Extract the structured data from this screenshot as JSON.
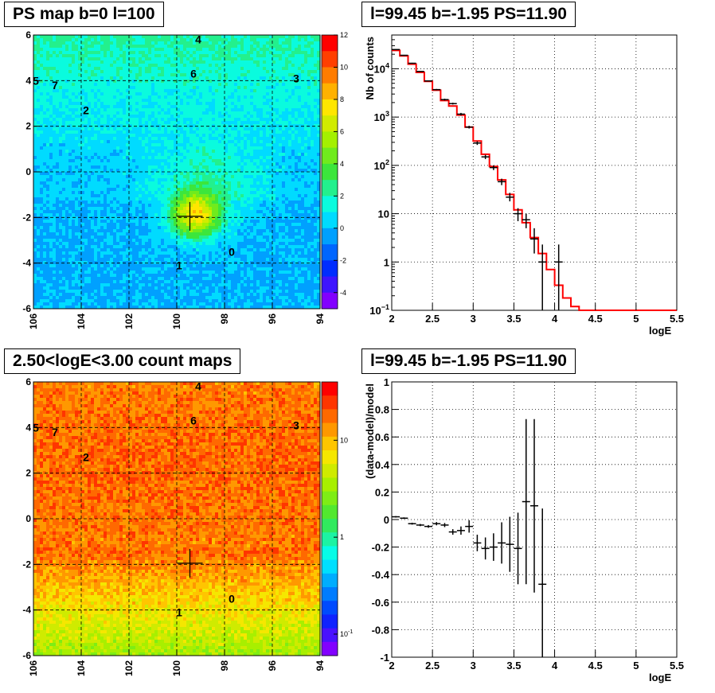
{
  "panels": {
    "ps_map_title": "PS map b=0 l=100",
    "spectrum_title": "l=99.45 b=-1.95 PS=11.90",
    "count_map_title": "2.50<logE<3.00 count maps",
    "residual_title": "l=99.45 b=-1.95 PS=11.90"
  },
  "colors": {
    "data": "#000000",
    "model": "#ff0000",
    "grid": "#000000"
  },
  "chart_data": [
    {
      "type": "heatmap",
      "title": "PS map b=0 l=100",
      "x_ticks": [
        "106",
        "104",
        "102",
        "100",
        "98",
        "96",
        "94"
      ],
      "y_ticks": [
        "6",
        "4",
        "2",
        "0",
        "-2",
        "-4",
        "-6"
      ],
      "xlim": [
        106,
        94
      ],
      "ylim": [
        -6,
        6
      ],
      "colorbar_ticks": [
        "12",
        "10",
        "8",
        "6",
        "4",
        "2",
        "0",
        "-2",
        "-4"
      ],
      "colorbar_range": [
        -5,
        12
      ],
      "grid": true,
      "cross": {
        "l": 99.45,
        "b": -1.95
      },
      "sources": [
        {
          "label": "4",
          "l": 99.1,
          "b": 5.8
        },
        {
          "label": "5",
          "l": 105.9,
          "b": 4.0
        },
        {
          "label": "7",
          "l": 105.1,
          "b": 3.8
        },
        {
          "label": "6",
          "l": 99.3,
          "b": 4.3
        },
        {
          "label": "3",
          "l": 95.0,
          "b": 4.1
        },
        {
          "label": "2",
          "l": 103.8,
          "b": 2.7
        },
        {
          "label": "0",
          "l": 97.7,
          "b": -3.5
        },
        {
          "label": "1",
          "l": 99.9,
          "b": -4.1
        }
      ]
    },
    {
      "type": "line",
      "title": "l=99.45 b=-1.95 PS=11.90",
      "xlabel": "logE",
      "ylabel": "Nb of counts",
      "xlim": [
        2,
        5.5
      ],
      "ylim": [
        0.1,
        50000
      ],
      "ylog": true,
      "x_ticks": [
        "2",
        "2.5",
        "3",
        "3.5",
        "4",
        "4.5",
        "5",
        "5.5"
      ],
      "y_ticks": [
        {
          "v": 10000,
          "base": "10",
          "exp": "4"
        },
        {
          "v": 1000,
          "base": "10",
          "exp": "3"
        },
        {
          "v": 100,
          "base": "10",
          "exp": "2"
        },
        {
          "v": 10,
          "base": "10",
          "exp": ""
        },
        {
          "v": 1,
          "base": "1",
          "exp": ""
        },
        {
          "v": 0.1,
          "base": "10",
          "exp": "−1"
        }
      ],
      "grid": true,
      "series": [
        {
          "kind": "data",
          "points": [
            {
              "x": 2.05,
              "y": 25000,
              "lo": 24500,
              "hi": 25500
            },
            {
              "x": 2.15,
              "y": 19000,
              "lo": 18600,
              "hi": 19400
            },
            {
              "x": 2.25,
              "y": 13000,
              "lo": 12700,
              "hi": 13300
            },
            {
              "x": 2.35,
              "y": 8800,
              "lo": 8600,
              "hi": 9000
            },
            {
              "x": 2.45,
              "y": 5600,
              "lo": 5450,
              "hi": 5750
            },
            {
              "x": 2.55,
              "y": 3700,
              "lo": 3580,
              "hi": 3820
            },
            {
              "x": 2.65,
              "y": 2300,
              "lo": 2200,
              "hi": 2400
            },
            {
              "x": 2.75,
              "y": 1900,
              "lo": 1820,
              "hi": 1980
            },
            {
              "x": 2.85,
              "y": 1150,
              "lo": 1080,
              "hi": 1220
            },
            {
              "x": 2.95,
              "y": 620,
              "lo": 580,
              "hi": 660
            },
            {
              "x": 3.05,
              "y": 290,
              "lo": 265,
              "hi": 315
            },
            {
              "x": 3.15,
              "y": 150,
              "lo": 135,
              "hi": 165
            },
            {
              "x": 3.25,
              "y": 90,
              "lo": 80,
              "hi": 100
            },
            {
              "x": 3.35,
              "y": 46,
              "lo": 39,
              "hi": 53
            },
            {
              "x": 3.45,
              "y": 22,
              "lo": 18,
              "hi": 27
            },
            {
              "x": 3.55,
              "y": 10,
              "lo": 7,
              "hi": 13
            },
            {
              "x": 3.65,
              "y": 7.5,
              "lo": 5,
              "hi": 10
            },
            {
              "x": 3.75,
              "y": 3,
              "lo": 1.5,
              "hi": 5
            },
            {
              "x": 3.85,
              "y": 1,
              "lo": 0.1,
              "hi": 2.3
            },
            {
              "x": 4.05,
              "y": 1,
              "lo": 0.1,
              "hi": 2.3
            }
          ]
        },
        {
          "kind": "model",
          "edges": [
            2.0,
            2.1,
            2.2,
            2.3,
            2.4,
            2.5,
            2.6,
            2.7,
            2.8,
            2.9,
            3.0,
            3.1,
            3.2,
            3.3,
            3.4,
            3.5,
            3.6,
            3.7,
            3.8,
            3.9,
            4.0,
            4.1,
            4.2,
            4.3,
            5.5
          ],
          "values": [
            24000,
            18500,
            12500,
            8400,
            5500,
            3600,
            2200,
            1700,
            1100,
            620,
            320,
            170,
            95,
            50,
            25,
            12,
            6.5,
            3.2,
            1.5,
            0.7,
            0.33,
            0.18,
            0.12,
            0.1
          ]
        }
      ]
    },
    {
      "type": "heatmap",
      "title": "2.50<logE<3.00 count maps",
      "x_ticks": [
        "106",
        "104",
        "102",
        "100",
        "98",
        "96",
        "94"
      ],
      "y_ticks": [
        "6",
        "4",
        "2",
        "0",
        "-2",
        "-4",
        "-6"
      ],
      "xlim": [
        106,
        94
      ],
      "ylim": [
        -6,
        6
      ],
      "colorbar_ticks": [
        {
          "v": 10,
          "base": "10",
          "exp": ""
        },
        {
          "v": 1,
          "base": "1",
          "exp": ""
        },
        {
          "v": 0.1,
          "base": "10",
          "exp": "-1"
        }
      ],
      "colorbar_log": true,
      "grid": true,
      "cross": {
        "l": 99.45,
        "b": -1.95
      },
      "sources": [
        {
          "label": "4",
          "l": 99.1,
          "b": 5.8
        },
        {
          "label": "5",
          "l": 105.9,
          "b": 4.0
        },
        {
          "label": "7",
          "l": 105.1,
          "b": 3.8
        },
        {
          "label": "6",
          "l": 99.3,
          "b": 4.3
        },
        {
          "label": "3",
          "l": 95.0,
          "b": 4.1
        },
        {
          "label": "2",
          "l": 103.8,
          "b": 2.7
        },
        {
          "label": "0",
          "l": 97.7,
          "b": -3.5
        },
        {
          "label": "1",
          "l": 99.9,
          "b": -4.1
        }
      ]
    },
    {
      "type": "scatter",
      "title": "l=99.45 b=-1.95 PS=11.90",
      "xlabel": "logE",
      "ylabel": "(data-model)/model",
      "xlim": [
        2,
        5.5
      ],
      "ylim": [
        -1,
        1
      ],
      "x_ticks": [
        "2",
        "2.5",
        "3",
        "3.5",
        "4",
        "4.5",
        "5",
        "5.5"
      ],
      "y_ticks": [
        "1",
        "0.8",
        "0.6",
        "0.4",
        "0.2",
        "0",
        "-0.2",
        "-0.4",
        "-0.6",
        "-0.8",
        "-1"
      ],
      "grid": true,
      "series": [
        {
          "kind": "data",
          "points": [
            {
              "x": 2.05,
              "y": 0.02,
              "err": 0.005
            },
            {
              "x": 2.15,
              "y": 0.01,
              "err": 0.006
            },
            {
              "x": 2.25,
              "y": -0.03,
              "err": 0.007
            },
            {
              "x": 2.35,
              "y": -0.04,
              "err": 0.008
            },
            {
              "x": 2.45,
              "y": -0.05,
              "err": 0.01
            },
            {
              "x": 2.55,
              "y": -0.03,
              "err": 0.012
            },
            {
              "x": 2.65,
              "y": -0.04,
              "err": 0.015
            },
            {
              "x": 2.75,
              "y": -0.09,
              "err": 0.02
            },
            {
              "x": 2.85,
              "y": -0.08,
              "err": 0.03
            },
            {
              "x": 2.95,
              "y": -0.05,
              "err": 0.045
            },
            {
              "x": 3.05,
              "y": -0.17,
              "err": 0.06
            },
            {
              "x": 3.15,
              "y": -0.21,
              "err": 0.08
            },
            {
              "x": 3.25,
              "y": -0.2,
              "err": 0.1
            },
            {
              "x": 3.35,
              "y": -0.17,
              "err": 0.15
            },
            {
              "x": 3.45,
              "y": -0.18,
              "err": 0.2
            },
            {
              "x": 3.55,
              "y": -0.21,
              "err": 0.26
            },
            {
              "x": 3.65,
              "y": 0.13,
              "err": 0.6
            },
            {
              "x": 3.75,
              "y": 0.1,
              "err": 0.63
            },
            {
              "x": 3.85,
              "y": -0.47,
              "err": 0.55
            }
          ]
        }
      ]
    }
  ]
}
